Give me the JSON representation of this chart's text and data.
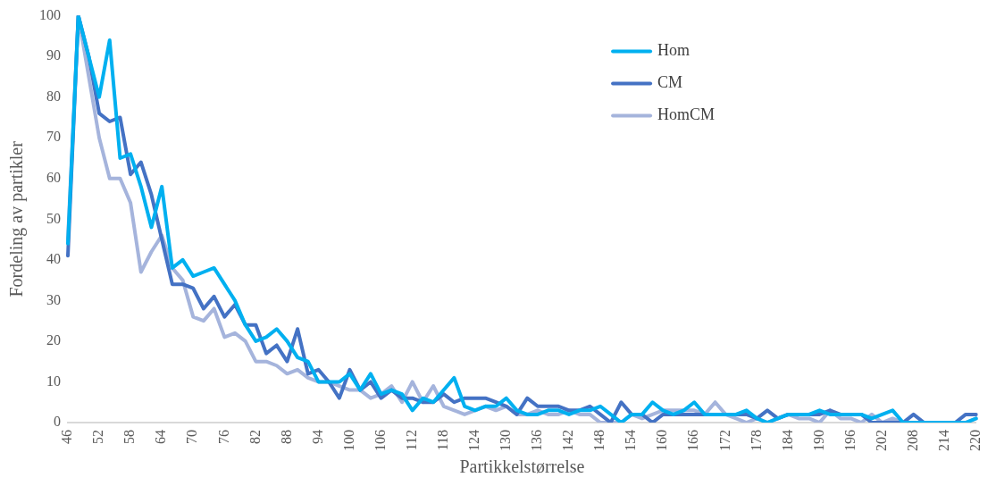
{
  "chart_data": {
    "type": "line",
    "xlabel": "Partikkelstørrelse",
    "ylabel": "Fordeling av partikler",
    "categories": [
      "46",
      null,
      null,
      "52",
      null,
      null,
      "58",
      null,
      null,
      "64",
      null,
      null,
      "70",
      null,
      null,
      "76",
      null,
      null,
      "82",
      null,
      null,
      "88",
      null,
      null,
      "94",
      null,
      null,
      "100",
      null,
      null,
      "106",
      null,
      null,
      "112",
      null,
      null,
      "118",
      null,
      null,
      "124",
      null,
      null,
      "130",
      null,
      null,
      "136",
      null,
      null,
      "142",
      null,
      null,
      "148",
      null,
      null,
      "154",
      null,
      null,
      "160",
      null,
      null,
      "166",
      null,
      null,
      "172",
      null,
      null,
      "178",
      null,
      null,
      "184",
      null,
      null,
      "190",
      null,
      null,
      "196",
      null,
      null,
      "202",
      null,
      null,
      "208",
      null,
      null,
      "214",
      null,
      null,
      "220"
    ],
    "series": [
      {
        "name": "Hom",
        "color": "#00b0f0",
        "values": [
          44,
          100,
          90,
          80,
          94,
          65,
          66,
          58,
          48,
          58,
          38,
          40,
          36,
          37,
          38,
          34,
          30,
          24,
          20,
          21,
          23,
          20,
          16,
          15,
          10,
          10,
          10,
          12,
          8,
          12,
          7,
          8,
          7,
          3,
          6,
          5,
          8,
          11,
          4,
          3,
          4,
          4,
          6,
          3,
          2,
          2,
          3,
          3,
          2,
          3,
          3,
          4,
          2,
          0,
          2,
          2,
          5,
          3,
          2,
          3,
          5,
          2,
          2,
          2,
          2,
          3,
          1,
          0,
          1,
          2,
          2,
          2,
          3,
          2,
          2,
          2,
          2,
          1,
          2,
          3,
          0,
          0,
          0,
          0,
          0,
          0,
          0,
          1
        ]
      },
      {
        "name": "CM",
        "color": "#4472c4",
        "values": [
          41,
          100,
          90,
          76,
          74,
          75,
          61,
          64,
          56,
          45,
          34,
          34,
          33,
          28,
          31,
          26,
          29,
          24,
          24,
          17,
          19,
          15,
          23,
          12,
          13,
          10,
          6,
          13,
          8,
          10,
          6,
          8,
          6,
          6,
          5,
          5,
          7,
          5,
          6,
          6,
          6,
          5,
          4,
          2,
          6,
          4,
          4,
          4,
          3,
          3,
          4,
          2,
          0,
          5,
          2,
          2,
          0,
          2,
          2,
          2,
          2,
          2,
          2,
          2,
          2,
          2,
          1,
          3,
          1,
          2,
          2,
          2,
          2,
          3,
          2,
          2,
          2,
          0,
          0,
          0,
          0,
          2,
          0,
          0,
          0,
          0,
          2,
          2
        ]
      },
      {
        "name": "HomCM",
        "color": "#a5b4dc",
        "values": [
          45,
          100,
          85,
          70,
          60,
          60,
          54,
          37,
          42,
          46,
          38,
          35,
          26,
          25,
          28,
          21,
          22,
          20,
          15,
          15,
          14,
          12,
          13,
          11,
          10,
          10,
          9,
          8,
          8,
          6,
          7,
          9,
          5,
          10,
          5,
          9,
          4,
          3,
          2,
          3,
          4,
          3,
          4,
          2,
          2,
          3,
          2,
          2,
          3,
          2,
          2,
          0,
          0,
          0,
          2,
          1,
          2,
          3,
          3,
          3,
          3,
          2,
          5,
          2,
          1,
          0,
          1,
          0,
          1,
          2,
          1,
          1,
          0,
          3,
          1,
          1,
          0,
          2,
          0,
          1,
          0,
          0,
          0,
          0,
          0,
          0,
          0,
          1
        ]
      }
    ],
    "ylim": [
      0,
      100
    ],
    "yticks": [
      0,
      10,
      20,
      30,
      40,
      50,
      60,
      70,
      80,
      90,
      100
    ],
    "grid": false,
    "legend": "top right",
    "marker": "none",
    "line_style": "solid"
  }
}
